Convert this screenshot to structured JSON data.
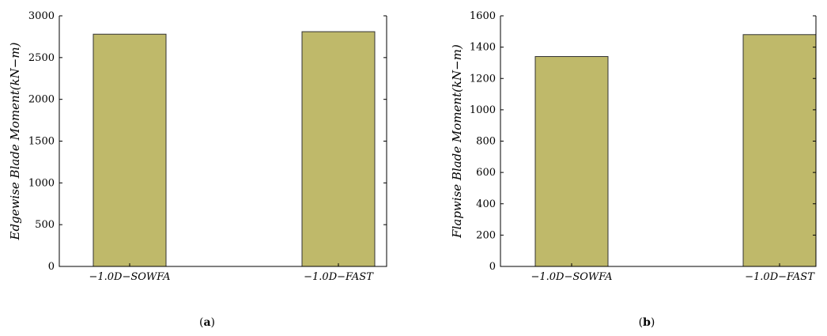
{
  "chart_data": [
    {
      "id": "a",
      "type": "bar",
      "caption": "a",
      "categories": [
        "−1.0D−SOWFA",
        "−1.0D−FAST"
      ],
      "values": [
        2780,
        2810
      ],
      "ylabel": "Edgewise Blade Moment(kN−m)",
      "xlabel": "",
      "title": "",
      "ylim": [
        0,
        3000
      ],
      "yticks": [
        0,
        500,
        1000,
        1500,
        2000,
        2500,
        3000
      ],
      "bar_color": "#bfb96a",
      "grid": false,
      "legend": "none"
    },
    {
      "id": "b",
      "type": "bar",
      "caption": "b",
      "categories": [
        "−1.0D−SOWFA",
        "−1.0D−FAST"
      ],
      "values": [
        1340,
        1480
      ],
      "ylabel": "Flapwise Blade Moment(kN−m)",
      "xlabel": "",
      "title": "",
      "ylim": [
        0,
        1600
      ],
      "yticks": [
        0,
        200,
        400,
        600,
        800,
        1000,
        1200,
        1400,
        1600
      ],
      "bar_color": "#bfb96a",
      "grid": false,
      "legend": "none"
    }
  ]
}
